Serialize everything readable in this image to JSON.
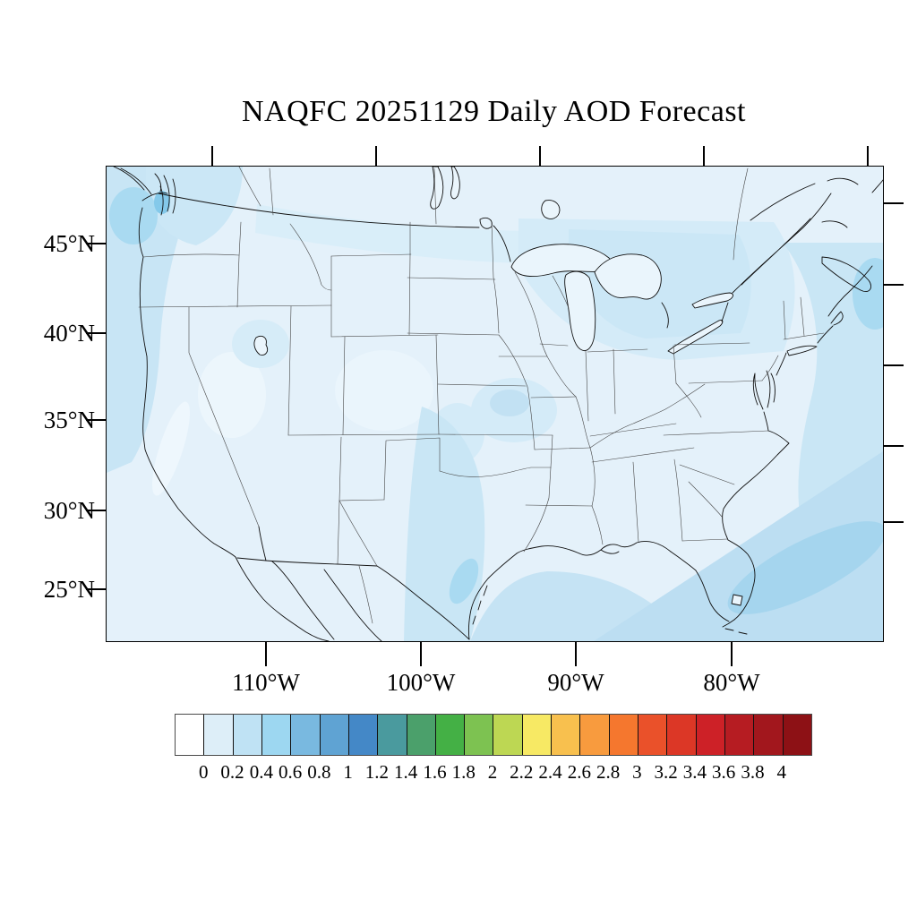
{
  "title": "NAQFC 20251129 Daily AOD Forecast",
  "axes": {
    "lat_labels": [
      "45°N",
      "40°N",
      "35°N",
      "30°N",
      "25°N"
    ],
    "lon_labels": [
      "110°W",
      "100°W",
      "90°W",
      "80°W"
    ]
  },
  "colorbar": {
    "tick_labels": [
      "0",
      "0.2",
      "0.4",
      "0.6",
      "0.8",
      "1",
      "1.2",
      "1.4",
      "1.6",
      "1.8",
      "2",
      "2.2",
      "2.4",
      "2.6",
      "2.8",
      "3",
      "3.2",
      "3.4",
      "3.6",
      "3.8",
      "4"
    ],
    "cell_colors": [
      "#ffffff",
      "#ddeef8",
      "#bfe2f4",
      "#9dd7f1",
      "#79b9e0",
      "#5fa3d3",
      "#4488c7",
      "#4a9a9e",
      "#4ba06b",
      "#44b045",
      "#7dc251",
      "#bdd753",
      "#f7e964",
      "#f8c04e",
      "#f89b3e",
      "#f5772e",
      "#ea512a",
      "#dc3726",
      "#cd2127",
      "#b61c22",
      "#a2171d",
      "#8d1115"
    ]
  },
  "map_summary": {
    "variable": "AOD",
    "regions": [
      {
        "region": "Pacific Northwest coast and offshore",
        "aod_range": "0.2–0.6"
      },
      {
        "region": "Interior West (Nevada/Utah/Colorado)",
        "aod_range": "0–0.2"
      },
      {
        "region": "Northern Plains / Upper Midwest / Great Lakes",
        "aod_range": "0.2–0.4"
      },
      {
        "region": "Eastern Texas and western Gulf coast",
        "aod_range": "0.2–0.6"
      },
      {
        "region": "Missouri Valley patches",
        "aod_range": "0.2–0.4"
      },
      {
        "region": "Western Atlantic offshore Southeast / Bahamas band",
        "aod_range": "0.2–0.6"
      },
      {
        "region": "Atlantic offshore Northeast",
        "aod_range": "0.2–0.6"
      }
    ]
  }
}
